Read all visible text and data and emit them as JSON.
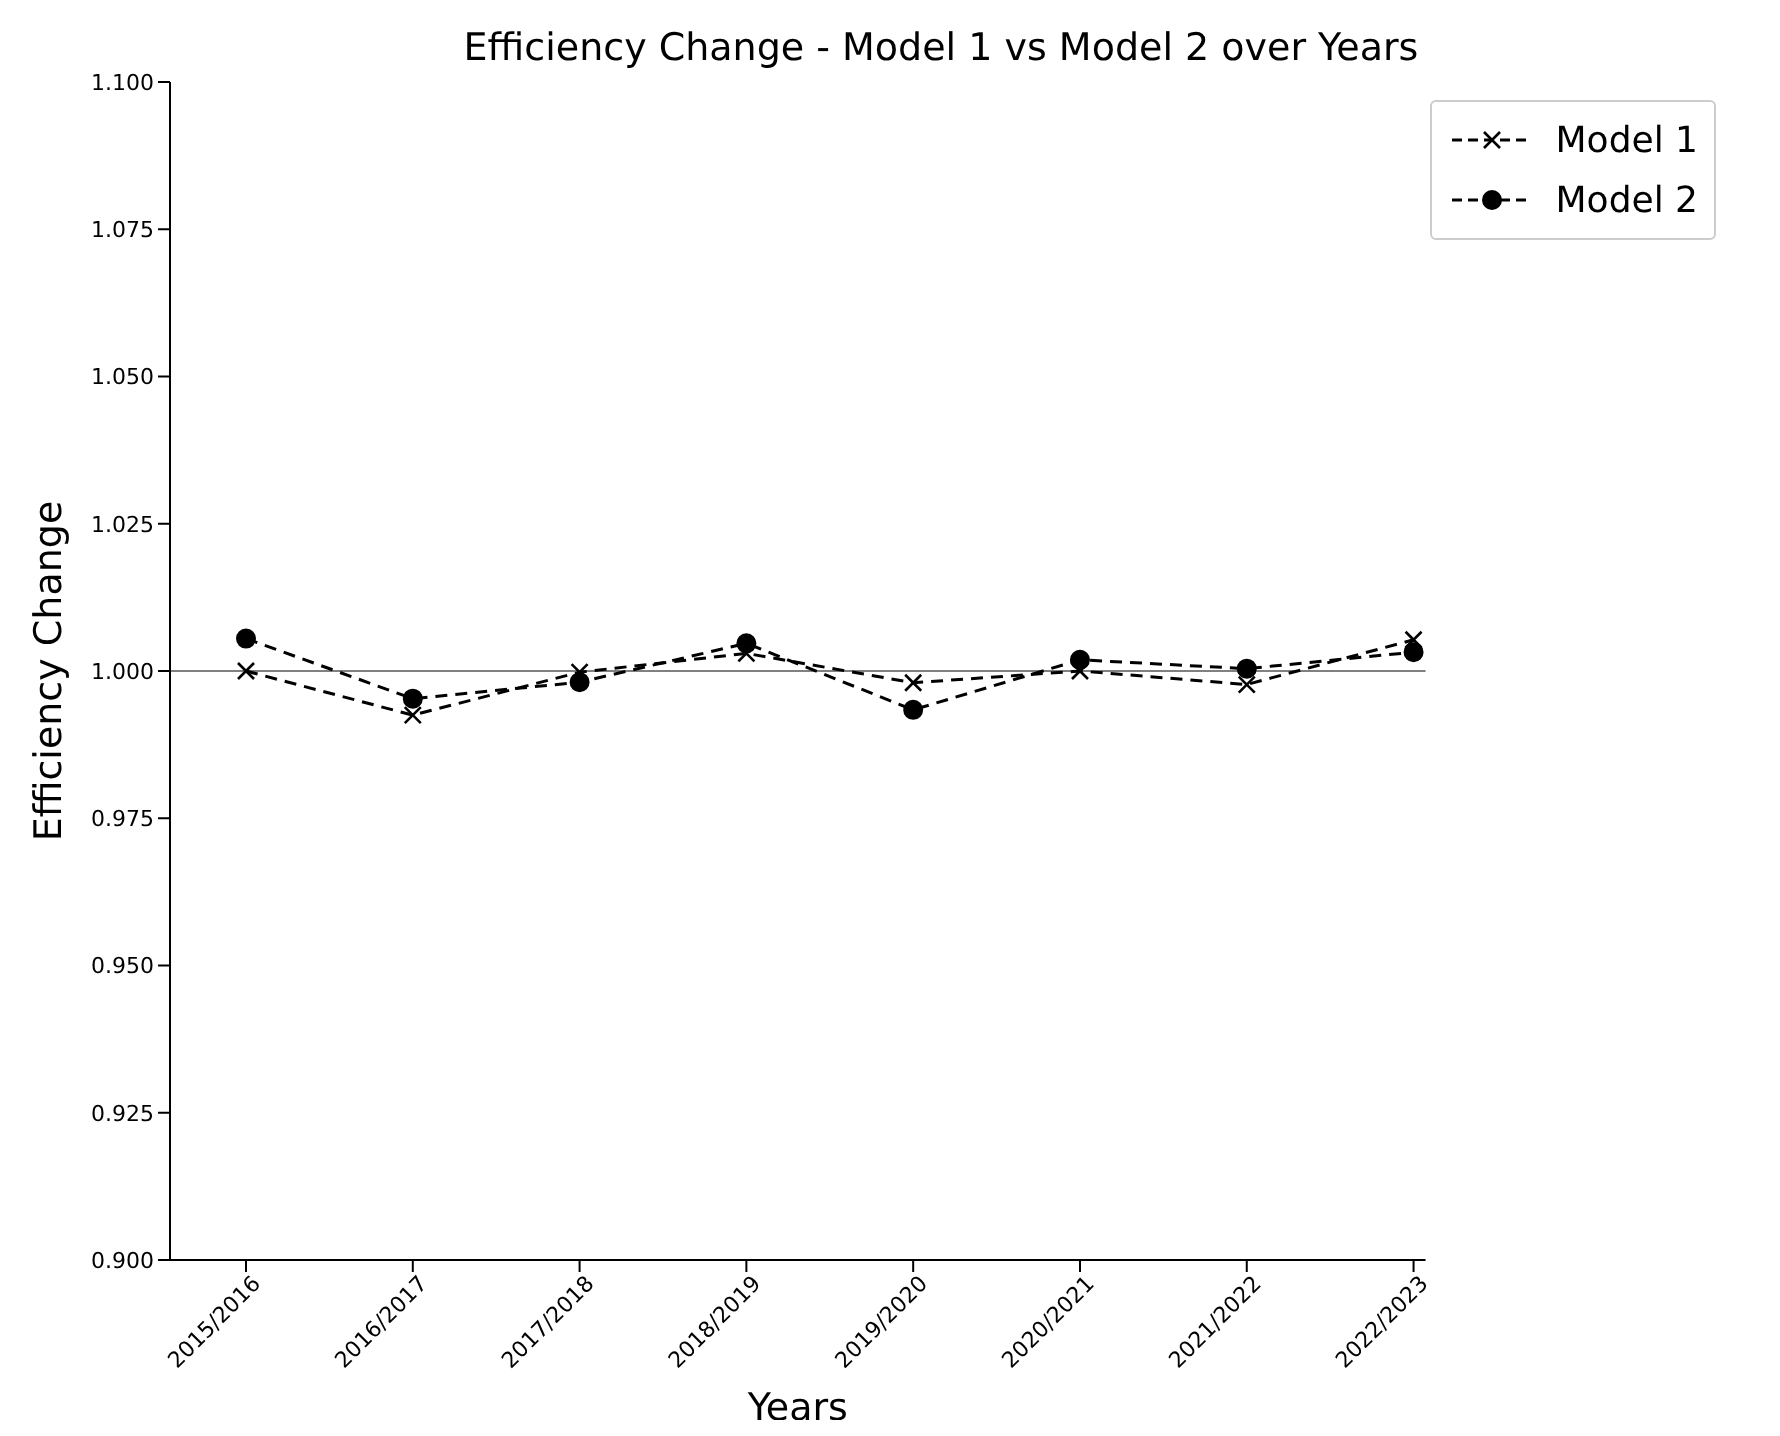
{
  "chart_data": {
    "type": "line",
    "title": "Efficiency Change - Model 1 vs Model 2 over Years",
    "xlabel": "Years",
    "ylabel": "Efficiency Change",
    "categories": [
      "2015/2016",
      "2016/2017",
      "2017/2018",
      "2018/2019",
      "2019/2020",
      "2020/2021",
      "2021/2022",
      "2022/2023"
    ],
    "series": [
      {
        "name": "Model 1",
        "color": "#000000",
        "marker": "cross",
        "values": [
          1.0,
          0.9925,
          0.9998,
          1.003,
          0.998,
          1.0,
          0.9977,
          1.0053
        ]
      },
      {
        "name": "Model 2",
        "color": "#000000",
        "marker": "circle",
        "values": [
          1.0055,
          0.9953,
          0.9981,
          1.0047,
          0.9934,
          1.0019,
          1.0004,
          1.0032
        ]
      }
    ],
    "line_style": "dashed",
    "ylim": [
      0.9,
      1.1
    ],
    "yticks": [
      {
        "value": 0.9,
        "label": "0.900"
      },
      {
        "value": 0.925,
        "label": "0.925"
      },
      {
        "value": 0.95,
        "label": "0.950"
      },
      {
        "value": 0.975,
        "label": "0.975"
      },
      {
        "value": 1.0,
        "label": "1.000"
      },
      {
        "value": 1.025,
        "label": "1.025"
      },
      {
        "value": 1.05,
        "label": "1.050"
      },
      {
        "value": 1.075,
        "label": "1.075"
      },
      {
        "value": 1.1,
        "label": "1.100"
      }
    ],
    "ref_lines": [
      {
        "axis": "y",
        "value": 1.0,
        "color": "#808080"
      }
    ],
    "grid": false,
    "legend": "top right"
  }
}
